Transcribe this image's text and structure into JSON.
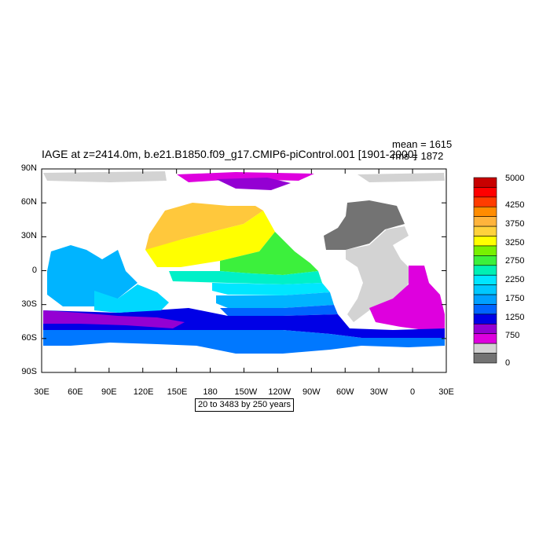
{
  "title": "IAGE at z=2414.0m, b.e21.B1850.f09_g17.CMIP6-piControl.001 [1901-2000]",
  "stats": {
    "mean": "mean = 1615",
    "rms": "rms = 1872"
  },
  "footnote": "20 to 3483 by 250 years",
  "map": {
    "lat_labels": [
      "90N",
      "60N",
      "30N",
      "0",
      "30S",
      "60S",
      "90S"
    ],
    "lon_labels": [
      "30E",
      "60E",
      "90E",
      "120E",
      "150E",
      "180",
      "150W",
      "120W",
      "90W",
      "60W",
      "30W",
      "0",
      "30E"
    ],
    "land_color": "#ffffff",
    "masked_land_color": "#d3d3d3",
    "regions": [
      {
        "name": "arctic-strip",
        "color": "#d3d3d3"
      },
      {
        "name": "greenland-sea",
        "color": "#de00de"
      },
      {
        "name": "nordic-seas",
        "color": "#9400d3"
      },
      {
        "name": "north-atlantic-dark",
        "color": "#737373"
      },
      {
        "name": "atlantic-west",
        "color": "#d3d3d3"
      },
      {
        "name": "south-atlantic-magenta",
        "color": "#de00de"
      },
      {
        "name": "north-pacific-orange",
        "color": "#ffc83c"
      },
      {
        "name": "north-pacific-yellow",
        "color": "#ffff00"
      },
      {
        "name": "east-pacific-green",
        "color": "#3cf03c"
      },
      {
        "name": "tropical-pacific-teal",
        "color": "#00f0c8"
      },
      {
        "name": "equatorial-pacific-cyan",
        "color": "#00e6ff"
      },
      {
        "name": "south-pacific-skyblue",
        "color": "#00b4ff"
      },
      {
        "name": "south-pacific-blue",
        "color": "#0064ff"
      },
      {
        "name": "southern-ocean-navy",
        "color": "#0000e6"
      },
      {
        "name": "indian-ocean-north",
        "color": "#00b4ff"
      },
      {
        "name": "indian-ocean-south",
        "color": "#00d7ff"
      },
      {
        "name": "southern-ocean-purple",
        "color": "#9400d3"
      },
      {
        "name": "antarctic-coastal",
        "color": "#0078ff"
      }
    ]
  },
  "colorbar": {
    "colors": [
      "#c80000",
      "#ff0000",
      "#ff3c00",
      "#ff8c00",
      "#ffb43c",
      "#ffd23c",
      "#ffff00",
      "#78f000",
      "#3cf03c",
      "#00f0b4",
      "#00e6ff",
      "#00c8ff",
      "#00a0ff",
      "#0064ff",
      "#0000e6",
      "#9400d3",
      "#de00de",
      "#d3d3d3",
      "#737373"
    ],
    "labels": [
      "5000",
      "4250",
      "3750",
      "3250",
      "2750",
      "2250",
      "1750",
      "1250",
      "750",
      "0"
    ]
  }
}
